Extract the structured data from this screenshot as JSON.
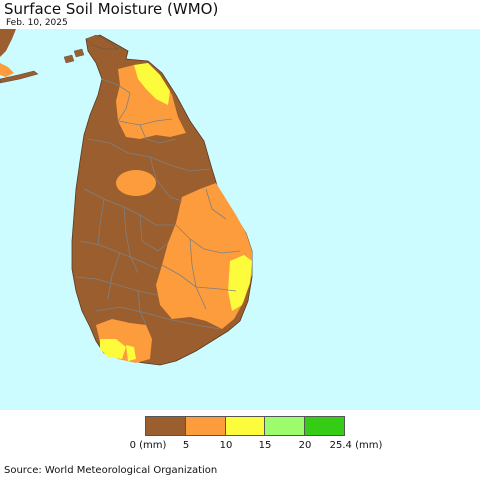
{
  "title": "Surface Soil Moisture (WMO)",
  "date": "Feb. 10, 2025",
  "source": "Source: World Meteorological Organization",
  "colors": {
    "sea": "#ccfcff",
    "class_0_5": "#9b5e2e",
    "class_5_10": "#fc9c3c",
    "class_10_15": "#fcfc3c",
    "class_15_20": "#9cfc6c",
    "class_20_25_4": "#34cc14",
    "district_border": "#808080"
  },
  "legend": {
    "colors": [
      "#9b5e2e",
      "#fc9c3c",
      "#fcfc3c",
      "#9cfc6c",
      "#34cc14"
    ],
    "ticks": [
      "0 (mm)",
      "5",
      "10",
      "15",
      "20",
      "25.4 (mm)"
    ]
  }
}
